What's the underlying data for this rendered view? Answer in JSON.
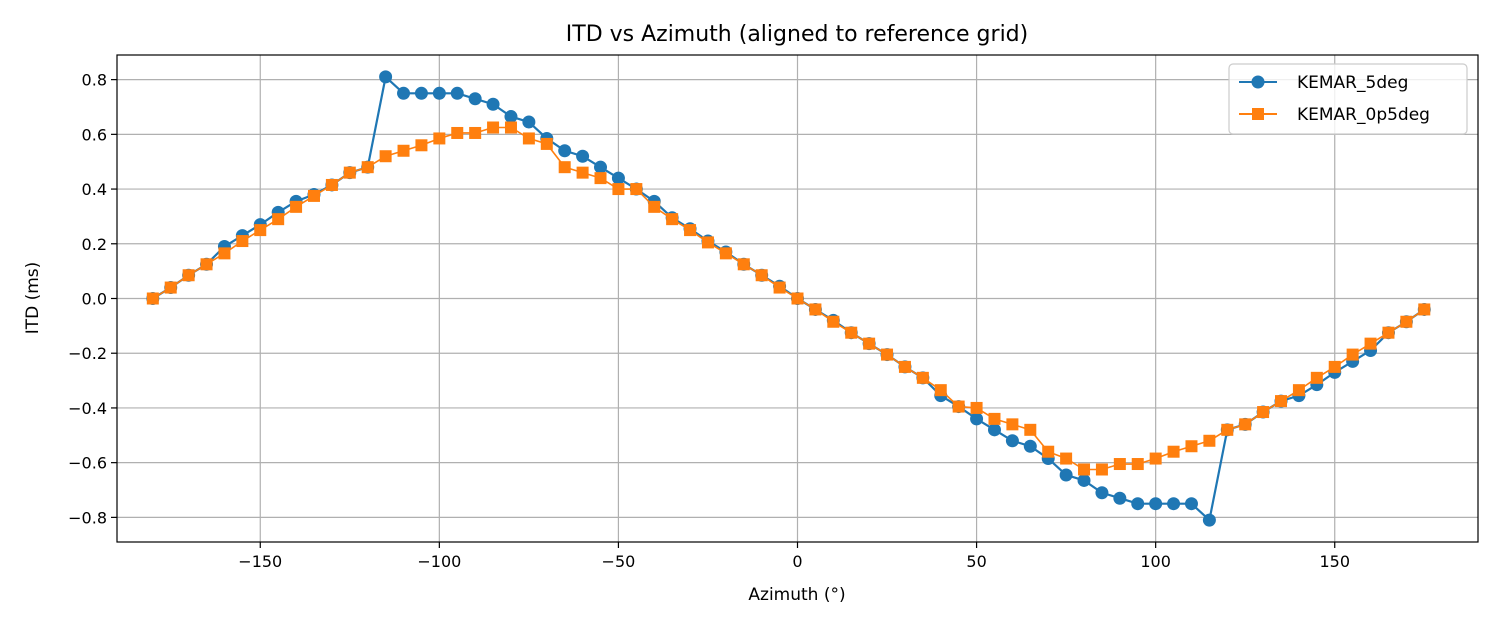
{
  "chart_data": {
    "type": "line",
    "title": "ITD vs Azimuth (aligned to reference grid)",
    "xlabel": "Azimuth (°)",
    "ylabel": "ITD (ms)",
    "xlim": [
      -190,
      190
    ],
    "ylim": [
      -0.89,
      0.89
    ],
    "xticks": [
      -150,
      -100,
      -50,
      0,
      50,
      100,
      150
    ],
    "xtick_labels": [
      "−150",
      "−100",
      "−50",
      "0",
      "50",
      "100",
      "150"
    ],
    "yticks": [
      -0.8,
      -0.6,
      -0.4,
      -0.2,
      0.0,
      0.2,
      0.4,
      0.6,
      0.8
    ],
    "ytick_labels": [
      "−0.8",
      "−0.6",
      "−0.4",
      "−0.2",
      "0.0",
      "0.2",
      "0.4",
      "0.6",
      "0.8"
    ],
    "grid": true,
    "legend_position": "top-right",
    "x": [
      -180,
      -175,
      -170,
      -165,
      -160,
      -155,
      -150,
      -145,
      -140,
      -135,
      -130,
      -125,
      -120,
      -115,
      -110,
      -105,
      -100,
      -95,
      -90,
      -85,
      -80,
      -75,
      -70,
      -65,
      -60,
      -55,
      -50,
      -45,
      -40,
      -35,
      -30,
      -25,
      -20,
      -15,
      -10,
      -5,
      0,
      5,
      10,
      15,
      20,
      25,
      30,
      35,
      40,
      45,
      50,
      55,
      60,
      65,
      70,
      75,
      80,
      85,
      90,
      95,
      100,
      105,
      110,
      115,
      120,
      125,
      130,
      135,
      140,
      145,
      150,
      155,
      160,
      165,
      170,
      175
    ],
    "series": [
      {
        "name": "KEMAR_5deg",
        "color": "#1f77b4",
        "marker": "circle",
        "values": [
          0.0,
          0.04,
          0.085,
          0.125,
          0.19,
          0.23,
          0.27,
          0.315,
          0.355,
          0.38,
          0.415,
          0.46,
          0.48,
          0.81,
          0.75,
          0.75,
          0.75,
          0.75,
          0.73,
          0.71,
          0.665,
          0.645,
          0.585,
          0.54,
          0.52,
          0.48,
          0.44,
          0.4,
          0.355,
          0.295,
          0.255,
          0.21,
          0.17,
          0.125,
          0.085,
          0.045,
          0.0,
          -0.04,
          -0.08,
          -0.125,
          -0.165,
          -0.205,
          -0.25,
          -0.29,
          -0.355,
          -0.395,
          -0.44,
          -0.48,
          -0.52,
          -0.54,
          -0.585,
          -0.645,
          -0.665,
          -0.71,
          -0.73,
          -0.75,
          -0.75,
          -0.75,
          -0.75,
          -0.81,
          -0.48,
          -0.46,
          -0.415,
          -0.375,
          -0.355,
          -0.315,
          -0.27,
          -0.23,
          -0.19,
          -0.125,
          -0.085,
          -0.04
        ]
      },
      {
        "name": "KEMAR_0p5deg",
        "color": "#ff7f0e",
        "marker": "square",
        "values": [
          0.0,
          0.04,
          0.085,
          0.125,
          0.165,
          0.21,
          0.25,
          0.29,
          0.335,
          0.375,
          0.415,
          0.46,
          0.48,
          0.52,
          0.54,
          0.56,
          0.585,
          0.605,
          0.605,
          0.625,
          0.625,
          0.585,
          0.565,
          0.48,
          0.46,
          0.44,
          0.4,
          0.4,
          0.335,
          0.29,
          0.25,
          0.205,
          0.165,
          0.125,
          0.085,
          0.04,
          0.0,
          -0.04,
          -0.085,
          -0.125,
          -0.165,
          -0.205,
          -0.25,
          -0.29,
          -0.335,
          -0.395,
          -0.4,
          -0.44,
          -0.46,
          -0.48,
          -0.56,
          -0.585,
          -0.625,
          -0.625,
          -0.605,
          -0.605,
          -0.585,
          -0.56,
          -0.54,
          -0.52,
          -0.48,
          -0.46,
          -0.415,
          -0.375,
          -0.335,
          -0.29,
          -0.25,
          -0.205,
          -0.165,
          -0.125,
          -0.085,
          -0.04
        ]
      }
    ]
  }
}
